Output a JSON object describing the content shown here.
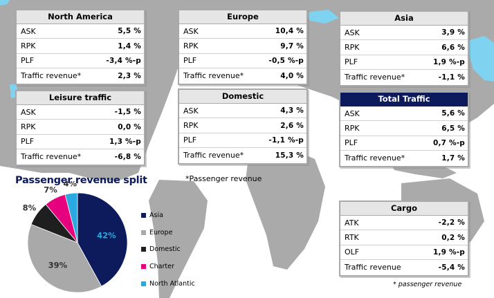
{
  "regions": [
    {
      "id": "north-america",
      "title": "North America",
      "rows": [
        {
          "label": "ASK",
          "value": "5,5 %"
        },
        {
          "label": "RPK",
          "value": "1,4 %"
        },
        {
          "label": "PLF",
          "value": "-3,4 %-p"
        },
        {
          "label": "Traffic revenue*",
          "value": "2,3 %"
        }
      ]
    },
    {
      "id": "europe",
      "title": "Europe",
      "rows": [
        {
          "label": "ASK",
          "value": "10,4 %"
        },
        {
          "label": "RPK",
          "value": "9,7 %"
        },
        {
          "label": "PLF",
          "value": "-0,5 %-p"
        },
        {
          "label": "Traffic revenue*",
          "value": "4,0 %"
        }
      ]
    },
    {
      "id": "asia",
      "title": "Asia",
      "rows": [
        {
          "label": "ASK",
          "value": "3,9 %"
        },
        {
          "label": "RPK",
          "value": "6,6 %"
        },
        {
          "label": "PLF",
          "value": "1,9 %-p"
        },
        {
          "label": "Traffic revenue*",
          "value": "-1,1 %"
        }
      ]
    },
    {
      "id": "leisure",
      "title": "Leisure traffic",
      "rows": [
        {
          "label": "ASK",
          "value": "-1,5 %"
        },
        {
          "label": "RPK",
          "value": "0,0 %"
        },
        {
          "label": "PLF",
          "value": "1,3 %-p"
        },
        {
          "label": "Traffic revenue*",
          "value": "-6,8 %"
        }
      ]
    },
    {
      "id": "domestic",
      "title": "Domestic",
      "rows": [
        {
          "label": "ASK",
          "value": "4,3 %"
        },
        {
          "label": "RPK",
          "value": "2,6 %"
        },
        {
          "label": "PLF",
          "value": "-1,1 %-p"
        },
        {
          "label": "Traffic revenue*",
          "value": "15,3 %"
        }
      ]
    },
    {
      "id": "total",
      "title": "Total Traffic",
      "rows": [
        {
          "label": "ASK",
          "value": "5,6 %"
        },
        {
          "label": "RPK",
          "value": "6,5 %"
        },
        {
          "label": "PLF",
          "value": "0,7 %-p"
        },
        {
          "label": "Traffic revenue*",
          "value": "1,7 %"
        }
      ]
    },
    {
      "id": "cargo",
      "title": "Cargo",
      "rows": [
        {
          "label": "ATK",
          "value": "-2,2 %"
        },
        {
          "label": "RTK",
          "value": "0,2 %"
        },
        {
          "label": "OLF",
          "value": "1,9 %-p"
        },
        {
          "label": "Traffic revenue",
          "value": "-5,4 %"
        }
      ]
    }
  ],
  "notes": {
    "passenger_revenue": "*Passenger revenue",
    "passenger_revenue_small": "* passenger revenue"
  },
  "colors": {
    "dark_header": "#0d1a5c",
    "map_land": "#aaaaaa",
    "map_water": "#ffffff"
  },
  "chart_data": {
    "type": "pie",
    "title": "Passenger revenue split",
    "categories": [
      "Asia",
      "Europe",
      "Domestic",
      "Charter",
      "North Atlantic"
    ],
    "values": [
      42,
      39,
      8,
      7,
      4
    ],
    "labels": [
      "42%",
      "39%",
      "8%",
      "7%",
      "4%"
    ],
    "colors": [
      "#0d1a5c",
      "#a9a9a9",
      "#1f1f1f",
      "#e6007e",
      "#2aa8e0"
    ],
    "legend_position": "right"
  }
}
